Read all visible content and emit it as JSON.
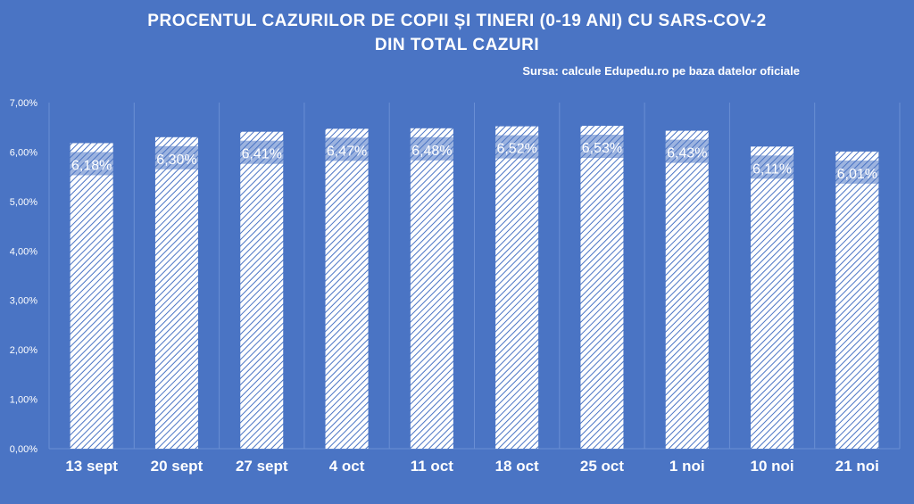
{
  "chart_data": {
    "type": "bar",
    "title": "PROCENTUL CAZURILOR DE COPII ȘI TINERI (0-19 ANI) CU SARS-COV-2 DIN TOTAL CAZURI",
    "title_lines": [
      "PROCENTUL CAZURILOR DE COPII ȘI TINERI (0-19 ANI) CU SARS-COV-2",
      "DIN TOTAL CAZURI"
    ],
    "source": "Sursa: calcule Edupedu.ro pe baza datelor oficiale",
    "categories": [
      "13 sept",
      "20 sept",
      "27 sept",
      "4 oct",
      "11 oct",
      "18 oct",
      "25 oct",
      "1 noi",
      "10 noi",
      "21 noi"
    ],
    "values": [
      6.18,
      6.3,
      6.41,
      6.47,
      6.48,
      6.52,
      6.53,
      6.43,
      6.11,
      6.01
    ],
    "data_labels": [
      "6,18%",
      "6,30%",
      "6,41%",
      "6,47%",
      "6,48%",
      "6,52%",
      "6,53%",
      "6,43%",
      "6,11%",
      "6,01%"
    ],
    "y_ticks": [
      0,
      1,
      2,
      3,
      4,
      5,
      6,
      7
    ],
    "y_tick_labels": [
      "0,00%",
      "1,00%",
      "2,00%",
      "3,00%",
      "4,00%",
      "5,00%",
      "6,00%",
      "7,00%"
    ],
    "ylim": [
      0,
      7
    ],
    "xlabel": "",
    "ylabel": "",
    "grid": "vertical-separators",
    "legend": "none",
    "colors": {
      "background": "#4a74c4",
      "bar_fill": "#ffffff",
      "bar_hatch": "#4a74c4",
      "text": "#ffffff",
      "grid": "#6a8fd4"
    }
  }
}
